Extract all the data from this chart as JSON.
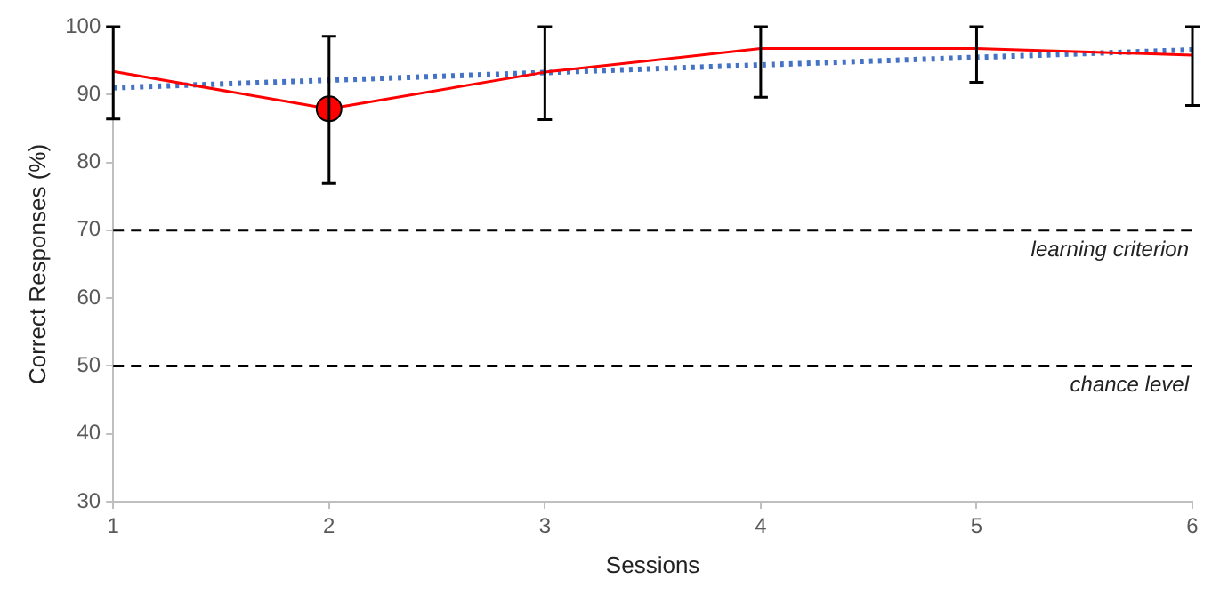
{
  "chart_data": {
    "type": "line",
    "xlabel": "Sessions",
    "ylabel": "Correct Responses (%)",
    "x": [
      1,
      2,
      3,
      4,
      5,
      6
    ],
    "series": [
      {
        "color": "#ff0000",
        "values": [
          93.4,
          87.9,
          93.3,
          96.8,
          96.8,
          95.8
        ],
        "marker": "none",
        "line_style": "solid",
        "errors": [
          [
            86.4,
            100
          ],
          [
            76.9,
            98.6
          ],
          [
            86.3,
            100
          ],
          [
            89.6,
            100
          ],
          [
            91.8,
            100
          ],
          [
            88.4,
            100
          ]
        ]
      },
      {
        "type": "scatter",
        "color": "#ff0000",
        "x": [
          2
        ],
        "values": [
          87.9
        ],
        "marker": "circle"
      },
      {
        "type": "line",
        "color": "#4472c4",
        "x": [
          1,
          6
        ],
        "values": [
          91,
          96.6
        ],
        "marker": "none",
        "line_style": "dotted"
      }
    ],
    "ref_lines": [
      {
        "axis": "y",
        "value": 70,
        "label": "learning criterion",
        "color": "#000000",
        "line_style": "dashed"
      },
      {
        "axis": "y",
        "value": 50,
        "label": "chance level",
        "color": "#000000",
        "line_style": "dashed"
      }
    ],
    "xlim": [
      1,
      6
    ],
    "xticks": [
      1,
      2,
      3,
      4,
      5,
      6
    ],
    "ylim": [
      30,
      100
    ],
    "yticks": [
      30,
      40,
      50,
      60,
      70,
      80,
      90,
      100
    ],
    "grid": false,
    "legend": false
  }
}
